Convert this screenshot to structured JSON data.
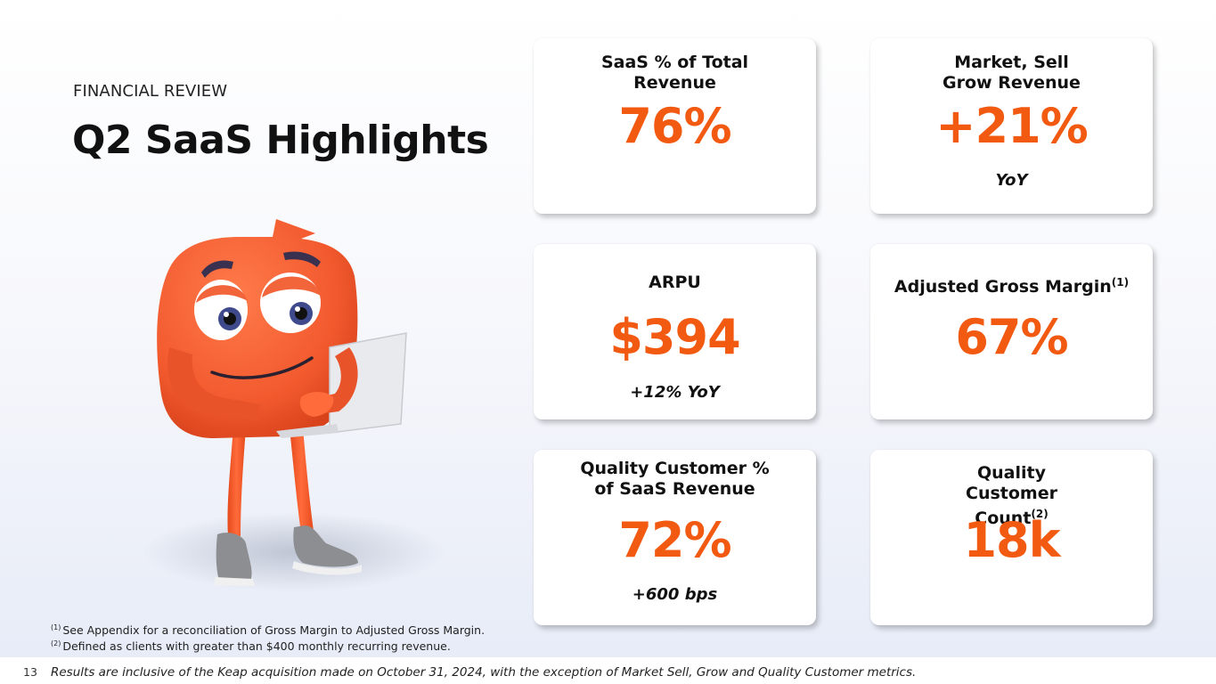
{
  "header": {
    "eyebrow": "FINANCIAL REVIEW",
    "title": "Q2 SaaS Highlights"
  },
  "cards": [
    {
      "label": "SaaS % of Total Revenue",
      "value": "76%",
      "note": ""
    },
    {
      "label": "Market, Sell Grow Revenue",
      "value": "+21%",
      "note": "YoY"
    },
    {
      "label": "ARPU",
      "value": "$394",
      "note": "+12% YoY"
    },
    {
      "label": "Adjusted Gross Margin",
      "label_sup": "(1)",
      "value": "67%",
      "note": ""
    },
    {
      "label": "Quality Customer % of SaaS Revenue",
      "value": "72%",
      "note": "+600 bps"
    },
    {
      "label": "Quality Customer Count",
      "label_sup": "(2)",
      "value": "18k",
      "note": ""
    }
  ],
  "footnotes": [
    {
      "marker": "(1)",
      "text": "See Appendix for a reconciliation of Gross Margin to Adjusted Gross Margin."
    },
    {
      "marker": "(2)",
      "text": "Defined as clients with greater than $400 monthly recurring revenue."
    }
  ],
  "footer": {
    "page_number": "13",
    "disclaimer": "Results are inclusive of the Keap acquisition made on October 31, 2024, with the exception of Market Sell, Grow and Quality Customer metrics."
  },
  "colors": {
    "accent": "#f25a12",
    "text": "#111111",
    "card_bg": "#ffffff"
  },
  "mascot": {
    "icon": "orange-mascot-with-laptop-illustration"
  }
}
